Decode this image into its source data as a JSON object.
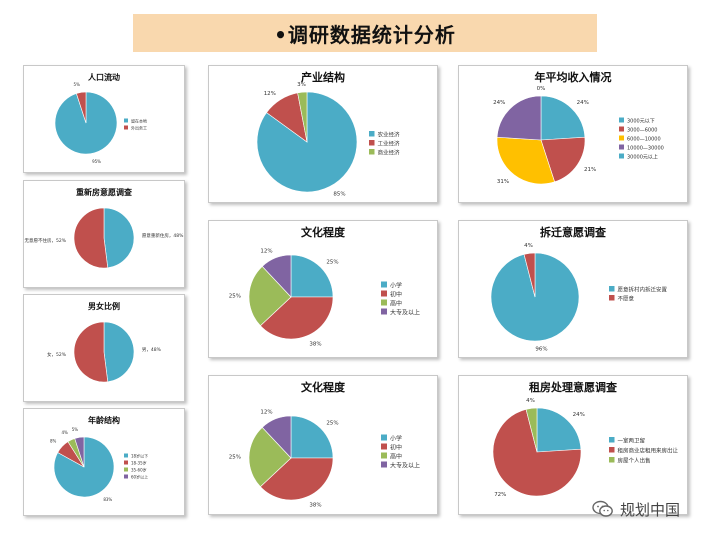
{
  "header": {
    "title": "•调研数据统计分析"
  },
  "watermark": {
    "text": "规划中国"
  },
  "chart_data": [
    {
      "id": "c1",
      "type": "pie",
      "title": "人口流动",
      "labels": [
        "留在本地",
        "外出务工"
      ],
      "values": [
        95,
        5
      ],
      "value_labels": [
        "95%",
        "5%"
      ],
      "colors": [
        "#4bacc6",
        "#c0504d"
      ]
    },
    {
      "id": "c2",
      "type": "pie",
      "title": "重新房意愿调查",
      "labels": [
        "愿意重新建房",
        "无意愿"
      ],
      "values": [
        48,
        52
      ],
      "value_labels": [
        "愿意重新住房，48%",
        "无意愿不住房，52%"
      ],
      "colors": [
        "#4bacc6",
        "#c0504d"
      ]
    },
    {
      "id": "c3",
      "type": "pie",
      "title": "男女比例",
      "labels": [
        "男",
        "女"
      ],
      "values": [
        48,
        52
      ],
      "value_labels": [
        "男，48%",
        "女，52%"
      ],
      "colors": [
        "#4bacc6",
        "#c0504d"
      ]
    },
    {
      "id": "c4",
      "type": "pie",
      "title": "年龄结构",
      "labels": [
        "18岁以下",
        "18-35岁",
        "35-60岁",
        "60岁以上"
      ],
      "values": [
        83,
        8,
        4,
        5
      ],
      "value_labels": [
        "83%",
        "8%",
        "4%",
        "5%"
      ],
      "colors": [
        "#4bacc6",
        "#c0504d",
        "#9bbb59",
        "#8064a2"
      ]
    },
    {
      "id": "c5",
      "type": "pie",
      "title": "产业结构",
      "labels": [
        "农业经济",
        "工业经济",
        "商业经济"
      ],
      "values": [
        85,
        12,
        3
      ],
      "value_labels": [
        "85%",
        "12%",
        "3%"
      ],
      "colors": [
        "#4bacc6",
        "#c0504d",
        "#9bbb59"
      ]
    },
    {
      "id": "c6",
      "type": "pie",
      "title": "年平均收入情况",
      "labels": [
        "3000元以下",
        "3000—6000",
        "6000—10000",
        "10000—30000",
        "30000元以上"
      ],
      "values": [
        24,
        21,
        31,
        24,
        0
      ],
      "value_labels": [
        "24%",
        "21%",
        "31%",
        "24%",
        "0%"
      ],
      "colors": [
        "#4bacc6",
        "#c0504d",
        "#ffc000",
        "#8064a2",
        "#4bacc6"
      ]
    },
    {
      "id": "c7",
      "type": "pie",
      "title": "文化程度",
      "labels": [
        "小学",
        "初中",
        "高中",
        "大专及以上"
      ],
      "values": [
        25,
        38,
        25,
        12
      ],
      "value_labels": [
        "25%",
        "38%",
        "25%",
        "12%"
      ],
      "colors": [
        "#4bacc6",
        "#c0504d",
        "#9bbb59",
        "#8064a2"
      ]
    },
    {
      "id": "c8",
      "type": "pie",
      "title": "拆迁意愿调查",
      "labels": [
        "愿意拆村内拆迁安置",
        "不愿意"
      ],
      "values": [
        96,
        4
      ],
      "value_labels": [
        "96%",
        "4%"
      ],
      "colors": [
        "#4bacc6",
        "#c0504d"
      ]
    },
    {
      "id": "c9",
      "type": "pie",
      "title": "文化程度",
      "labels": [
        "小学",
        "初中",
        "高中",
        "大专及以上"
      ],
      "values": [
        25,
        38,
        25,
        12
      ],
      "value_labels": [
        "25%",
        "38%",
        "25%",
        "12%"
      ],
      "colors": [
        "#4bacc6",
        "#c0504d",
        "#9bbb59",
        "#8064a2"
      ]
    },
    {
      "id": "c10",
      "type": "pie",
      "title": "租房处理意愿调查",
      "labels": [
        "一室两卫留",
        "租房商业店租用来房出让",
        "房屋个人出售"
      ],
      "values": [
        24,
        72,
        4
      ],
      "value_labels": [
        "24%",
        "72%",
        "4%"
      ],
      "colors": [
        "#4bacc6",
        "#c0504d",
        "#9bbb59"
      ]
    }
  ]
}
